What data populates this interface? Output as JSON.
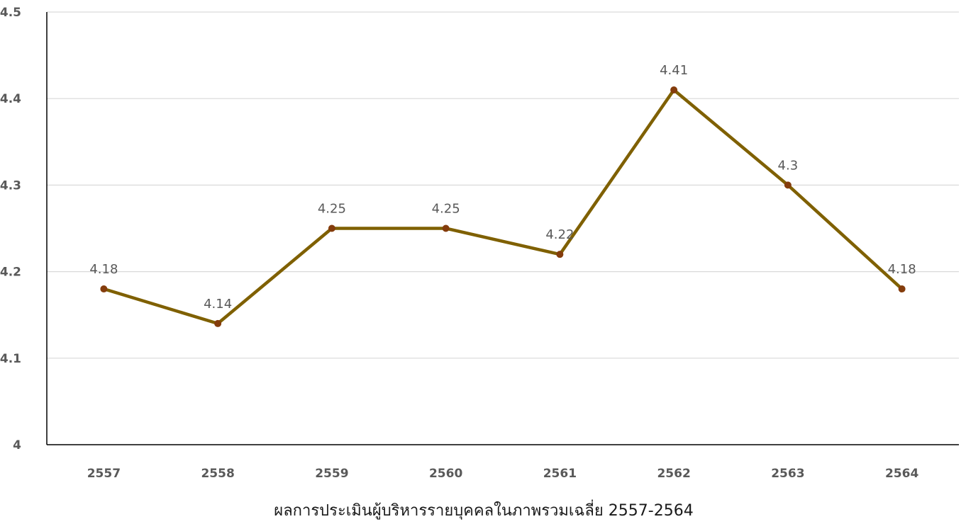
{
  "chart_data": {
    "type": "line",
    "categories": [
      "2557",
      "2558",
      "2559",
      "2560",
      "2561",
      "2562",
      "2563",
      "2564"
    ],
    "series": [
      {
        "values": [
          4.18,
          4.14,
          4.25,
          4.25,
          4.22,
          4.41,
          4.3,
          4.18
        ]
      }
    ],
    "data_labels": [
      "4.18",
      "4.14",
      "4.25",
      "4.25",
      "4.22",
      "4.41",
      "4.3",
      "4.18"
    ],
    "y_ticks": [
      "4",
      "4.1",
      "4.2",
      "4.3",
      "4.4",
      "4.5"
    ],
    "ylim": [
      4,
      4.5
    ],
    "title": "",
    "xlabel": "ผลการประเมินผู้บริหารรายบุคคลในภาพรวมเฉลี่ย 2557-2564",
    "ylabel": "",
    "grid": true,
    "legend": "none",
    "colors": {
      "line": "#7f6000",
      "marker": "#843c0c",
      "grid": "#d9d9d9",
      "axis": "#000000"
    }
  }
}
